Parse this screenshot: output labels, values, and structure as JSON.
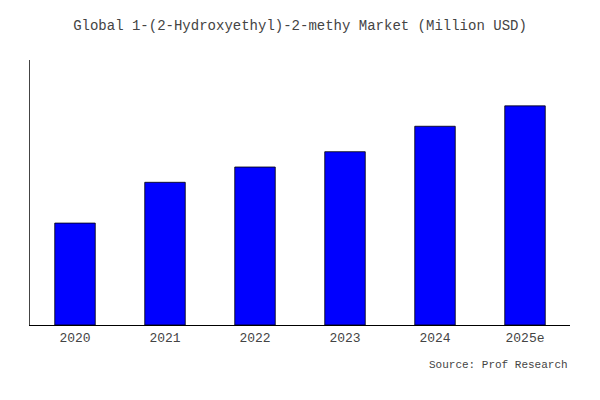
{
  "chart_data": {
    "type": "bar",
    "title": "Global 1-(2-Hydroxyethyl)-2-methy Market (Million USD)",
    "categories": [
      "2020",
      "2021",
      "2022",
      "2023",
      "2024",
      "2025e"
    ],
    "values": [
      100,
      140,
      155,
      170,
      195,
      215
    ],
    "color": "#0000FF",
    "ylim": [
      0,
      260
    ],
    "grid": false,
    "tick_labels": "x",
    "annotations": [
      "Source: Prof Research"
    ]
  }
}
